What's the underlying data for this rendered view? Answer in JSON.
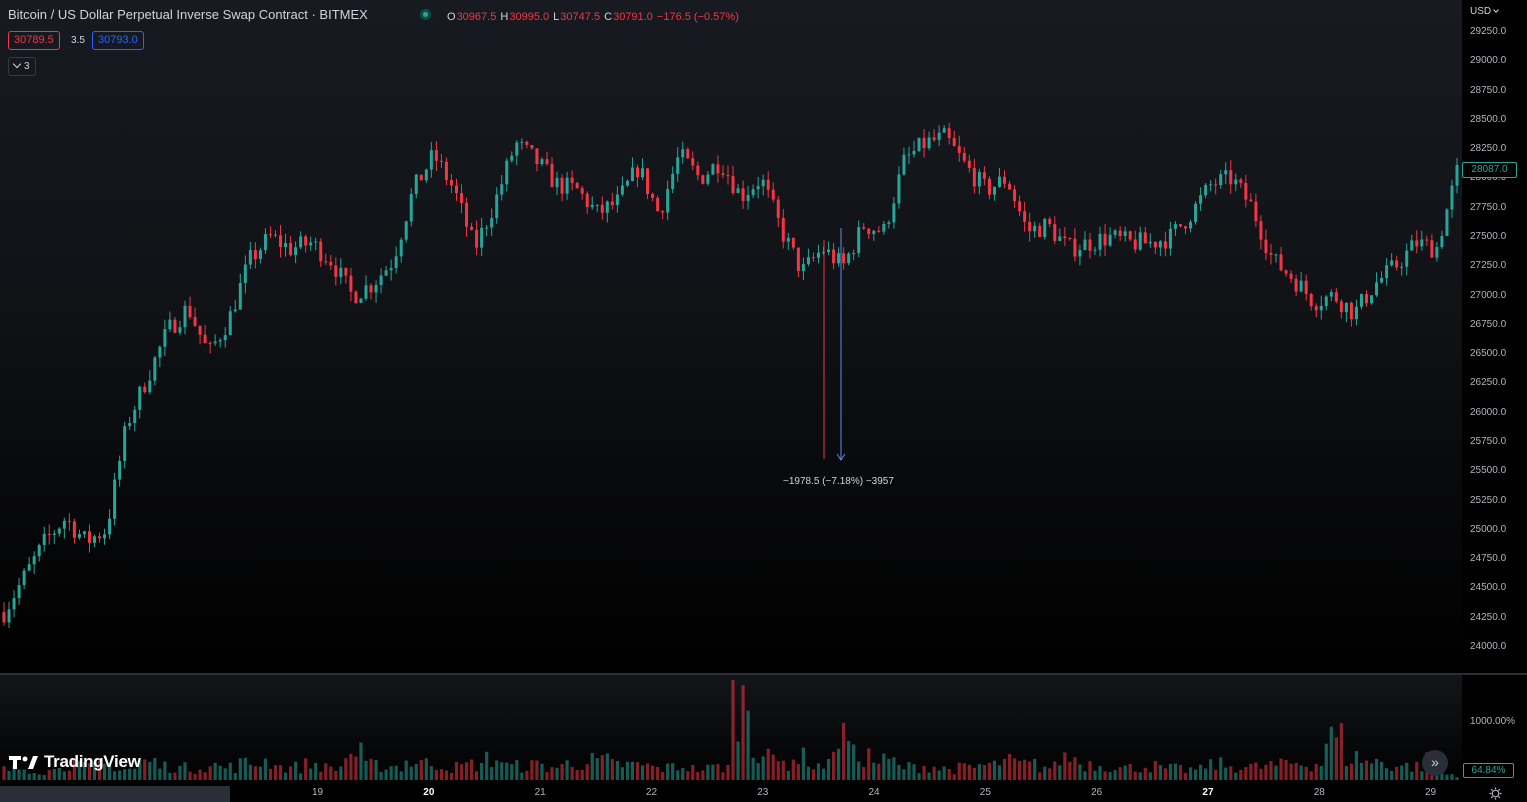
{
  "legend": {
    "title": "Bitcoin / US Dollar Perpetual Inverse Swap Contract · BITMEX",
    "open_key": "O",
    "open": "30967.5",
    "high_key": "H",
    "high": "30995.0",
    "low_key": "L",
    "low": "30747.5",
    "close_key": "C",
    "close": "30791.0",
    "change": "−176.5 (−0.57%)"
  },
  "quote": {
    "bid": "30789.5",
    "spread": "3.5",
    "ask": "30793.0"
  },
  "indicators": {
    "count": "3"
  },
  "price_axis": {
    "currency": "USD",
    "ticks": [
      "29250.0",
      "29000.0",
      "28750.0",
      "28500.0",
      "28250.0",
      "28000.0",
      "27750.0",
      "27500.0",
      "27250.0",
      "27000.0",
      "26750.0",
      "26500.0",
      "26250.0",
      "26000.0",
      "25750.0",
      "25500.0",
      "25250.0",
      "25000.0",
      "24750.0",
      "24500.0",
      "24250.0",
      "24000.0"
    ],
    "current_price": "28087.0"
  },
  "volume_axis": {
    "scale_label": "1000.00%",
    "current": "64.84%"
  },
  "time_axis": {
    "labels": [
      "19",
      "20",
      "21",
      "22",
      "23",
      "24",
      "25",
      "26",
      "27",
      "28",
      "29"
    ],
    "bold": [
      "20",
      "27"
    ]
  },
  "measure": {
    "label": "−1978.5 (−7.18%) −3957"
  },
  "brand": {
    "logo_text": "TradingView"
  },
  "colors": {
    "up": "#26a69a",
    "down": "#f23645",
    "measure": "#5b8def",
    "background": "#000000"
  },
  "chart_data": {
    "type": "candlestick",
    "symbol": "Bitcoin / US Dollar Perpetual Inverse Swap Contract · BITMEX",
    "y_range": [
      23900,
      29400
    ],
    "x_labels": [
      "19",
      "20",
      "21",
      "22",
      "23",
      "24",
      "25",
      "26",
      "27",
      "28",
      "29"
    ],
    "closes": [
      24300,
      24600,
      24900,
      25100,
      24900,
      25000,
      25900,
      26300,
      26700,
      26900,
      26500,
      26800,
      27300,
      27500,
      27400,
      27450,
      27300,
      27000,
      27100,
      27300,
      27900,
      28200,
      27900,
      27400,
      27800,
      28300,
      28150,
      27950,
      27900,
      27700,
      27800,
      28100,
      27700,
      28200,
      28000,
      28150,
      27850,
      28000,
      27550,
      27200,
      27400,
      27250,
      27600,
      27550,
      28150,
      28300,
      28350,
      28100,
      27900,
      28000,
      27550,
      27600,
      27400,
      27450,
      27500,
      27450,
      27450,
      27500,
      27700,
      27950,
      28000,
      27750,
      27300,
      27150,
      26950,
      27000,
      26850,
      27100,
      27250,
      27450,
      27400,
      28050
    ],
    "volume_pct_series": [
      120,
      140,
      110,
      200,
      150,
      180,
      130,
      210,
      160,
      140,
      170,
      150,
      190,
      220,
      150,
      180,
      140,
      300,
      170,
      160,
      210,
      190,
      150,
      180,
      240,
      160,
      170,
      150,
      200,
      220,
      180,
      170,
      140,
      160,
      130,
      150,
      900,
      380,
      200,
      260,
      170,
      500,
      280,
      220,
      150,
      160,
      130,
      140,
      170,
      210,
      180,
      150,
      260,
      190,
      170,
      140,
      160,
      130,
      120,
      180,
      160,
      150,
      170,
      200,
      190,
      480,
      260,
      210,
      170,
      160,
      230,
      64.84
    ]
  }
}
